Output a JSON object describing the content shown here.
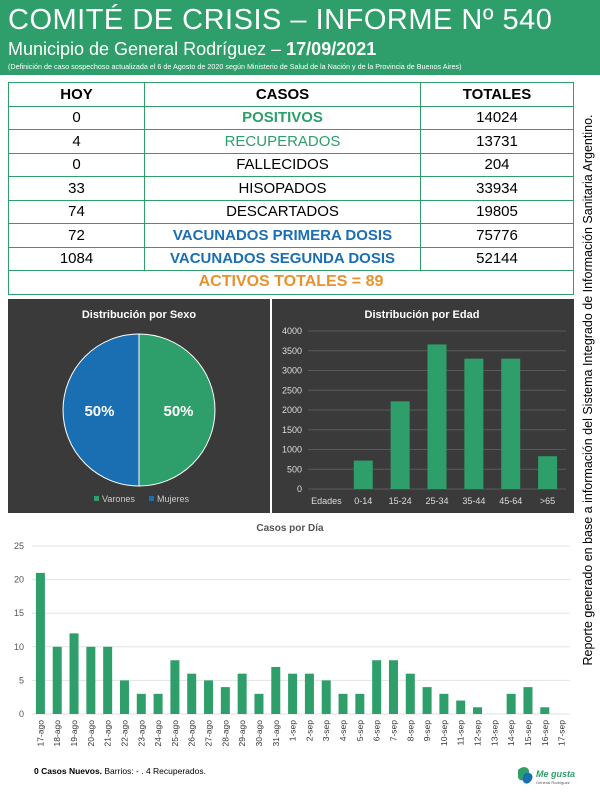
{
  "header": {
    "title": "COMITÉ DE CRISIS – INFORME Nº 540",
    "subtitle_prefix": "Municipio de General Rodríguez – ",
    "date": "17/09/2021",
    "note": "(Definición de caso sospechoso actualizada el 6 de Agosto de 2020 según Ministerio de Salud de la Nación y de la Provincia de Buenos Aires)"
  },
  "table": {
    "headers": [
      "HOY",
      "CASOS",
      "TOTALES"
    ],
    "rows": [
      {
        "hoy": "0",
        "caso": "POSITIVOS",
        "total": "14024"
      },
      {
        "hoy": "4",
        "caso": "RECUPERADOS",
        "total": "13731"
      },
      {
        "hoy": "0",
        "caso": "FALLECIDOS",
        "total": "204"
      },
      {
        "hoy": "33",
        "caso": "HISOPADOS",
        "total": "33934"
      },
      {
        "hoy": "74",
        "caso": "DESCARTADOS",
        "total": "19805"
      },
      {
        "hoy": "72",
        "caso": "VACUNADOS PRIMERA DOSIS",
        "total": "75776"
      },
      {
        "hoy": "1084",
        "caso": "VACUNADOS SEGUNDA DOSIS",
        "total": "52144"
      }
    ],
    "activos": "ACTIVOS TOTALES = 89"
  },
  "side_text": "Reporte generado en base a información del Sistema Integrado de Información Sanitaria Argentino.",
  "colors": {
    "green": "#2e9e6a",
    "blue": "#1a6fb3",
    "orange": "#e8912d"
  },
  "chart_data": [
    {
      "type": "pie",
      "title": "Distribución por Sexo",
      "categories": [
        "Varones",
        "Mujeres"
      ],
      "values": [
        50,
        50
      ],
      "labels": [
        "50%",
        "50%"
      ],
      "colors": [
        "#2e9e6a",
        "#1a6fb3"
      ],
      "legend": "bottom"
    },
    {
      "type": "bar",
      "title": "Distribución por Edad",
      "categories": [
        "Edades",
        "0-14",
        "15-24",
        "25-34",
        "35-44",
        "45-64",
        ">65"
      ],
      "values": [
        0,
        720,
        2220,
        3660,
        3300,
        3300,
        830
      ],
      "ylim": [
        0,
        4000
      ],
      "yticks": [
        "0",
        "500",
        "1000",
        "1500",
        "2000",
        "2500",
        "3000",
        "3500",
        "4000"
      ],
      "grid": true
    },
    {
      "type": "bar",
      "title": "Casos por Día",
      "categories": [
        "17-ago",
        "18-ago",
        "19-ago",
        "20-ago",
        "21-ago",
        "22-ago",
        "23-ago",
        "24-ago",
        "25-ago",
        "26-ago",
        "27-ago",
        "28-ago",
        "29-ago",
        "30-ago",
        "31-ago",
        "1-sep",
        "2-sep",
        "3-sep",
        "4-sep",
        "5-sep",
        "6-sep",
        "7-sep",
        "8-sep",
        "9-sep",
        "10-sep",
        "11-sep",
        "12-sep",
        "13-sep",
        "14-sep",
        "15-sep",
        "16-sep",
        "17-sep"
      ],
      "values": [
        21,
        10,
        12,
        10,
        10,
        5,
        3,
        3,
        8,
        6,
        5,
        4,
        6,
        3,
        7,
        6,
        6,
        5,
        3,
        3,
        8,
        8,
        6,
        4,
        3,
        2,
        1,
        0,
        3,
        4,
        1,
        0
      ],
      "ylim": [
        0,
        25
      ],
      "yticks": [
        "0",
        "5",
        "10",
        "15",
        "20",
        "25"
      ],
      "grid": true
    }
  ],
  "footer": {
    "bold": "0 Casos Nuevos.",
    "rest": " Barrios: - . 4 Recuperados."
  },
  "logo": {
    "text": "Me gusta",
    "sub": "General Rodríguez"
  }
}
